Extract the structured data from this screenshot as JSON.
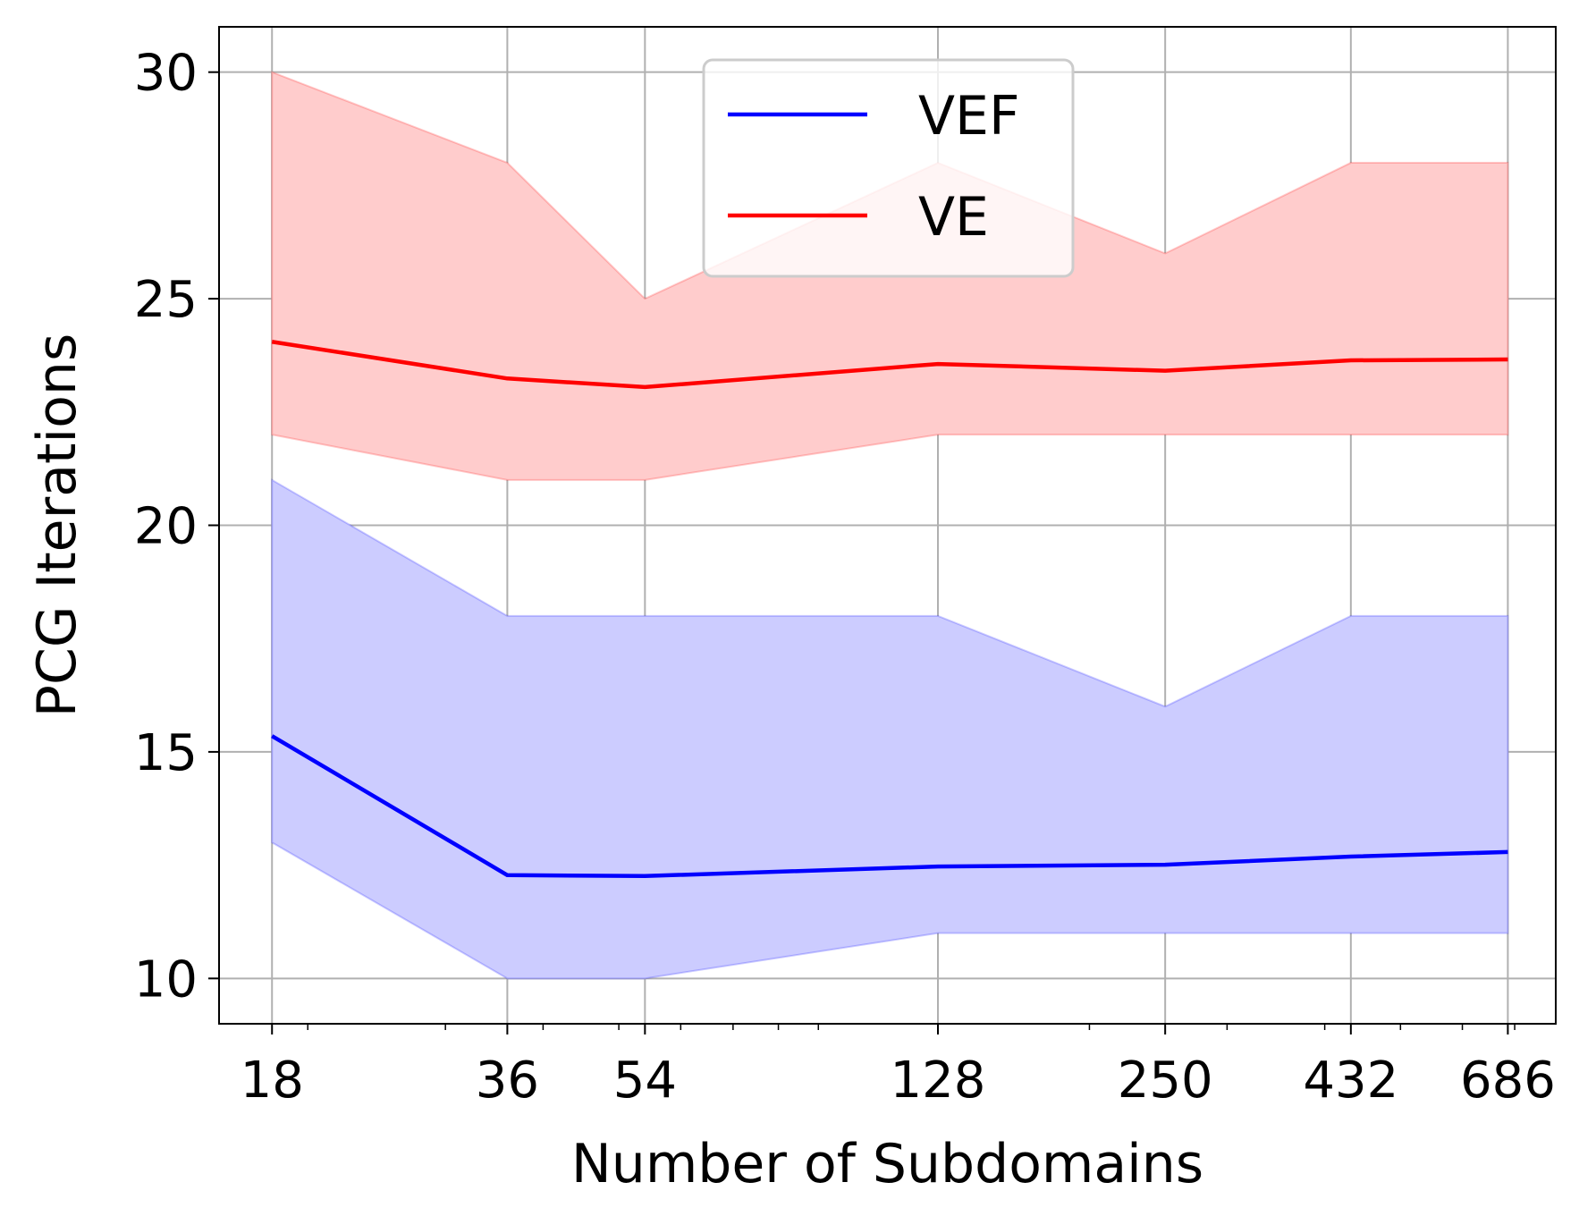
{
  "chart_data": {
    "type": "line",
    "title": "",
    "xlabel": "Number of Subdomains",
    "ylabel": "PCG Iterations",
    "xscale": "log",
    "x": [
      18,
      36,
      54,
      128,
      250,
      432,
      686
    ],
    "xticks": [
      "18",
      "36",
      "54",
      "128",
      "250",
      "432",
      "686"
    ],
    "yticks": [
      "10",
      "15",
      "20",
      "25",
      "30"
    ],
    "ytick_values": [
      10,
      15,
      20,
      25,
      30
    ],
    "ylim": [
      9,
      31
    ],
    "xlim": [
      15.4,
      790
    ],
    "grid": true,
    "legend_position": "top-center",
    "series": [
      {
        "name": "VEF",
        "color": "#0000ff",
        "band_color": "#ccccff",
        "values": [
          15.35,
          12.28,
          12.26,
          12.47,
          12.51,
          12.69,
          12.79
        ],
        "min": [
          13,
          10,
          10,
          11,
          11,
          11,
          11
        ],
        "max": [
          21,
          18,
          18,
          18,
          16,
          18,
          18
        ]
      },
      {
        "name": "VE",
        "color": "#ff0000",
        "band_color": "#ffcccc",
        "values": [
          24.05,
          23.24,
          23.05,
          23.56,
          23.41,
          23.64,
          23.66
        ],
        "min": [
          22,
          21,
          21,
          22,
          22,
          22,
          22
        ],
        "max": [
          30,
          28,
          25,
          28,
          26,
          28,
          28
        ]
      }
    ]
  }
}
